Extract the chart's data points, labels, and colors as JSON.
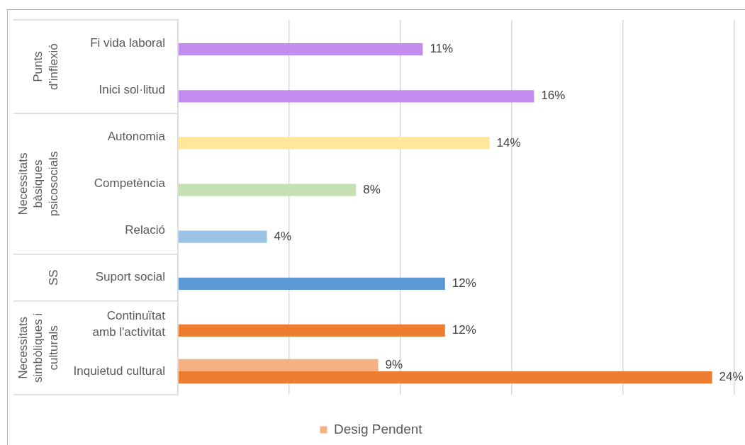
{
  "chart_data": {
    "type": "bar",
    "orientation": "horizontal",
    "categories": [
      "Fi vida laboral",
      "Inici sol·litud",
      "Autonomia",
      "Competència",
      "Relació",
      "Suport social",
      "Continuïtat amb l'activitat",
      "Inquietud cultural"
    ],
    "series": [
      {
        "name": "Desig Pendent",
        "color": "#f4b183",
        "values": [
          null,
          null,
          null,
          null,
          null,
          null,
          null,
          9
        ],
        "value_labels": [
          null,
          null,
          null,
          null,
          null,
          null,
          null,
          "9%"
        ]
      },
      {
        "colors": [
          "#c58cf0",
          "#c58cf0",
          "#ffe699",
          "#c5e0b4",
          "#9dc3e6",
          "#5b9bd5",
          "#ed7d31",
          "#ed7d31"
        ],
        "values": [
          11,
          16,
          14,
          8,
          4,
          12,
          12,
          24
        ],
        "value_labels": [
          "11%",
          "16%",
          "14%",
          "8%",
          "4%",
          "12%",
          "12%",
          "24%"
        ]
      }
    ],
    "xlim": [
      0,
      25
    ],
    "xticks": [
      {
        "value": 0,
        "label": null
      },
      {
        "value": 5,
        "label": null
      },
      {
        "value": 10,
        "label": null
      },
      {
        "value": 15,
        "label": null
      },
      {
        "value": 20,
        "label": null
      },
      {
        "value": 25,
        "label": null
      }
    ],
    "grid": "x",
    "tick_labels": "y",
    "legend": "bottom",
    "annotations": [
      "Punts d'inflexió",
      "Necessitats bàsiques psicosocials",
      "SS",
      "Necessitats simbòliques i culturals"
    ]
  }
}
